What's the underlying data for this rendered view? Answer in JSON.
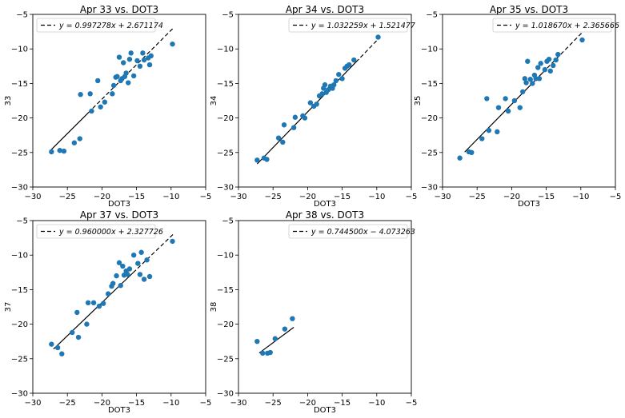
{
  "chart_data": [
    {
      "type": "scatter",
      "title": "Apr 33 vs. DOT3",
      "xlabel": "DOT3",
      "ylabel": "33",
      "xlim": [
        -30,
        -5
      ],
      "ylim": [
        -30,
        -5
      ],
      "xticks": [
        "−30",
        "−25",
        "−20",
        "−15",
        "−10",
        "−5"
      ],
      "yticks": [
        "−30",
        "−25",
        "−20",
        "−15",
        "−10",
        "−5"
      ],
      "legend_label": "y = 0.997278x + 2.671174",
      "legend_placement": "top-left",
      "fit": {
        "slope": 0.997278,
        "intercept": 2.671174,
        "x_range": [
          -27.3,
          -22
        ],
        "dashed_range": [
          -22,
          -9.7
        ]
      },
      "points": [
        [
          -27.3,
          -24.9
        ],
        [
          -26.1,
          -24.7
        ],
        [
          -25.5,
          -24.8
        ],
        [
          -24.0,
          -23.6
        ],
        [
          -23.2,
          -23.0
        ],
        [
          -23.1,
          -16.6
        ],
        [
          -21.7,
          -16.5
        ],
        [
          -21.5,
          -19.0
        ],
        [
          -20.6,
          -14.6
        ],
        [
          -20.2,
          -18.4
        ],
        [
          -19.6,
          -17.7
        ],
        [
          -18.5,
          -16.5
        ],
        [
          -18.3,
          -15.3
        ],
        [
          -18.0,
          -14.1
        ],
        [
          -17.8,
          -14.0
        ],
        [
          -17.5,
          -11.2
        ],
        [
          -17.3,
          -14.6
        ],
        [
          -17.1,
          -14.3
        ],
        [
          -16.9,
          -12.0
        ],
        [
          -16.7,
          -14.0
        ],
        [
          -16.5,
          -13.5
        ],
        [
          -16.2,
          -14.9
        ],
        [
          -16.0,
          -11.5
        ],
        [
          -15.8,
          -10.6
        ],
        [
          -15.4,
          -13.9
        ],
        [
          -14.9,
          -11.7
        ],
        [
          -14.5,
          -12.5
        ],
        [
          -14.1,
          -10.6
        ],
        [
          -13.9,
          -11.6
        ],
        [
          -13.3,
          -11.3
        ],
        [
          -13.1,
          -12.3
        ],
        [
          -12.9,
          -11.0
        ],
        [
          -9.8,
          -9.3
        ]
      ]
    },
    {
      "type": "scatter",
      "title": "Apr 34 vs. DOT3",
      "xlabel": "DOT3",
      "ylabel": "34",
      "xlim": [
        -30,
        -5
      ],
      "ylim": [
        -30,
        -5
      ],
      "xticks": [
        "−30",
        "−25",
        "−20",
        "−15",
        "−10",
        "−5"
      ],
      "yticks": [
        "−30",
        "−25",
        "−20",
        "−15",
        "−10",
        "−5"
      ],
      "legend_label": "y = 1.032259x + 1.521477",
      "legend_placement": "top-right",
      "fit": {
        "slope": 1.032259,
        "intercept": 1.521477,
        "x_range": [
          -27.3,
          -13
        ],
        "dashed_range": [
          -13,
          -9.7
        ]
      },
      "points": [
        [
          -27.3,
          -26.1
        ],
        [
          -26.3,
          -25.8
        ],
        [
          -25.9,
          -26.0
        ],
        [
          -24.2,
          -22.9
        ],
        [
          -23.6,
          -23.5
        ],
        [
          -23.4,
          -21.0
        ],
        [
          -22.0,
          -21.4
        ],
        [
          -21.8,
          -19.9
        ],
        [
          -20.7,
          -19.7
        ],
        [
          -20.4,
          -20.0
        ],
        [
          -19.6,
          -17.8
        ],
        [
          -19.1,
          -18.3
        ],
        [
          -18.7,
          -18.0
        ],
        [
          -18.3,
          -16.8
        ],
        [
          -17.9,
          -16.5
        ],
        [
          -17.7,
          -15.7
        ],
        [
          -17.5,
          -15.2
        ],
        [
          -17.3,
          -16.3
        ],
        [
          -17.0,
          -15.9
        ],
        [
          -16.7,
          -15.4
        ],
        [
          -16.4,
          -15.7
        ],
        [
          -16.2,
          -15.2
        ],
        [
          -15.9,
          -14.6
        ],
        [
          -15.5,
          -13.7
        ],
        [
          -15.0,
          -14.3
        ],
        [
          -14.6,
          -12.8
        ],
        [
          -14.3,
          -12.5
        ],
        [
          -14.0,
          -12.3
        ],
        [
          -13.3,
          -11.6
        ],
        [
          -9.8,
          -8.3
        ]
      ]
    },
    {
      "type": "scatter",
      "title": "Apr 35 vs. DOT3",
      "xlabel": "DOT3",
      "ylabel": "35",
      "xlim": [
        -30,
        -5
      ],
      "ylim": [
        -30,
        -5
      ],
      "xticks": [
        "−30",
        "−25",
        "−20",
        "−15",
        "−10",
        "−5"
      ],
      "yticks": [
        "−30",
        "−25",
        "−20",
        "−15",
        "−10",
        "−5"
      ],
      "legend_label": "y = 1.018670x + 2.365666",
      "legend_placement": "top-right",
      "fit": {
        "slope": 1.01867,
        "intercept": 2.365666,
        "x_range": [
          -26.8,
          -15.5
        ],
        "dashed_range": [
          -15.5,
          -9.7
        ]
      },
      "points": [
        [
          -27.5,
          -25.8
        ],
        [
          -26.2,
          -24.9
        ],
        [
          -25.8,
          -25.0
        ],
        [
          -24.3,
          -23.0
        ],
        [
          -23.6,
          -17.2
        ],
        [
          -23.3,
          -21.8
        ],
        [
          -22.1,
          -22.0
        ],
        [
          -21.9,
          -18.5
        ],
        [
          -20.9,
          -17.2
        ],
        [
          -20.5,
          -19.0
        ],
        [
          -19.6,
          -17.5
        ],
        [
          -18.8,
          -18.5
        ],
        [
          -18.4,
          -16.2
        ],
        [
          -18.1,
          -14.3
        ],
        [
          -17.9,
          -14.9
        ],
        [
          -17.7,
          -11.8
        ],
        [
          -17.3,
          -14.4
        ],
        [
          -17.0,
          -15.0
        ],
        [
          -16.7,
          -13.8
        ],
        [
          -16.5,
          -14.3
        ],
        [
          -16.2,
          -12.7
        ],
        [
          -16.0,
          -14.3
        ],
        [
          -15.8,
          -12.1
        ],
        [
          -15.2,
          -13.0
        ],
        [
          -14.9,
          -11.8
        ],
        [
          -14.6,
          -11.5
        ],
        [
          -14.4,
          -13.2
        ],
        [
          -14.0,
          -12.4
        ],
        [
          -13.6,
          -11.6
        ],
        [
          -13.3,
          -10.8
        ],
        [
          -9.8,
          -8.7
        ]
      ]
    },
    {
      "type": "scatter",
      "title": "Apr 37 vs. DOT3",
      "xlabel": "DOT3",
      "ylabel": "37",
      "xlim": [
        -30,
        -5
      ],
      "ylim": [
        -30,
        -5
      ],
      "xticks": [
        "−30",
        "−25",
        "−20",
        "−15",
        "−10",
        "−5"
      ],
      "yticks": [
        "−30",
        "−25",
        "−20",
        "−15",
        "−10",
        "−5"
      ],
      "legend_label": "y = 0.960000x + 2.327726",
      "legend_placement": "top-left",
      "fit": {
        "slope": 0.96,
        "intercept": 2.327726,
        "x_range": [
          -27,
          -15.5
        ],
        "dashed_range": [
          -15.5,
          -9.7
        ]
      },
      "points": [
        [
          -27.3,
          -22.9
        ],
        [
          -26.4,
          -23.4
        ],
        [
          -25.8,
          -24.3
        ],
        [
          -24.3,
          -21.2
        ],
        [
          -23.6,
          -18.3
        ],
        [
          -23.4,
          -21.9
        ],
        [
          -22.2,
          -20.0
        ],
        [
          -22.0,
          -16.9
        ],
        [
          -21.2,
          -16.9
        ],
        [
          -20.4,
          -17.4
        ],
        [
          -19.8,
          -17.0
        ],
        [
          -19.1,
          -15.6
        ],
        [
          -18.6,
          -14.5
        ],
        [
          -18.4,
          -14.1
        ],
        [
          -17.9,
          -13.0
        ],
        [
          -17.5,
          -11.1
        ],
        [
          -17.3,
          -14.4
        ],
        [
          -17.0,
          -11.6
        ],
        [
          -16.8,
          -12.9
        ],
        [
          -16.5,
          -12.3
        ],
        [
          -16.3,
          -12.8
        ],
        [
          -16.0,
          -12.0
        ],
        [
          -15.4,
          -10.0
        ],
        [
          -14.8,
          -11.2
        ],
        [
          -14.5,
          -12.8
        ],
        [
          -14.3,
          -9.6
        ],
        [
          -13.9,
          -13.5
        ],
        [
          -13.5,
          -10.7
        ],
        [
          -13.1,
          -13.1
        ],
        [
          -9.8,
          -8.0
        ]
      ]
    },
    {
      "type": "scatter",
      "title": "Apr 38 vs. DOT3",
      "xlabel": "DOT3",
      "ylabel": "38",
      "xlim": [
        -30,
        -5
      ],
      "ylim": [
        -30,
        -5
      ],
      "xticks": [
        "−30",
        "−25",
        "−20",
        "−15",
        "−10",
        "−5"
      ],
      "yticks": [
        "−30",
        "−25",
        "−20",
        "−15",
        "−10",
        "−5"
      ],
      "legend_label": "y = 0.744500x − 4.073263",
      "legend_placement": "top-right",
      "fit": {
        "slope": 0.7445,
        "intercept": -4.073263,
        "x_range": [
          -27,
          -22
        ],
        "dashed_range": [
          -22,
          -22
        ]
      },
      "points": [
        [
          -27.3,
          -22.5
        ],
        [
          -26.5,
          -24.2
        ],
        [
          -25.8,
          -24.2
        ],
        [
          -24.7,
          -22.1
        ],
        [
          -23.3,
          -20.7
        ],
        [
          -22.2,
          -19.2
        ],
        [
          -25.4,
          -24.1
        ]
      ]
    }
  ],
  "colors": {
    "points": "#1f77b4",
    "fit_line": "#000000",
    "axes": "#000000"
  }
}
